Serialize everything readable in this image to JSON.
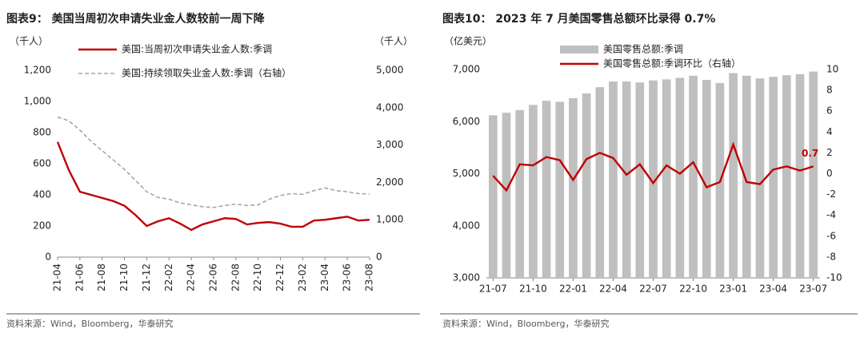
{
  "chart_data": [
    {
      "type": "line",
      "title": "图表9： 美国当周初次申请失业金人数较前一周下降",
      "y_label": "（千人）",
      "y2_label": "（千人）",
      "source": "资料来源：Wind，Bloomberg，华泰研究",
      "categories": [
        "21-04",
        null,
        "21-06",
        null,
        "21-08",
        null,
        "21-10",
        null,
        "21-12",
        null,
        "22-02",
        null,
        "22-04",
        null,
        "22-06",
        null,
        "22-08",
        null,
        "22-10",
        null,
        "22-12",
        null,
        "23-02",
        null,
        "23-04",
        null,
        "23-06",
        null,
        "23-08"
      ],
      "series": [
        {
          "name": "美国:当周初次申请失业金人数:季调",
          "color": "#c00000",
          "dashed": false,
          "values": [
            740,
            560,
            420,
            400,
            380,
            360,
            330,
            270,
            200,
            230,
            250,
            215,
            175,
            210,
            230,
            250,
            245,
            210,
            220,
            225,
            215,
            195,
            195,
            235,
            240,
            250,
            260,
            235,
            240
          ]
        },
        {
          "name": "美国:持续领取失业金人数:季调（右轴）",
          "color": "#a6a6a6",
          "dashed": true,
          "axis": "y2",
          "values": [
            3750,
            3650,
            3400,
            3100,
            2850,
            2600,
            2350,
            2050,
            1750,
            1600,
            1550,
            1450,
            1400,
            1350,
            1330,
            1380,
            1420,
            1380,
            1400,
            1550,
            1650,
            1700,
            1680,
            1780,
            1850,
            1780,
            1750,
            1700,
            1690
          ]
        }
      ],
      "ylim": [
        0,
        1200
      ],
      "yticks": [
        0,
        200,
        400,
        600,
        800,
        {
          "value": 1000,
          "label": "1,000"
        },
        {
          "value": 1200,
          "label": "1,200"
        }
      ],
      "y2lim": [
        0,
        5000
      ],
      "y2ticks": [
        0,
        {
          "value": 1000,
          "label": "1,000"
        },
        {
          "value": 2000,
          "label": "2,000"
        },
        {
          "value": 3000,
          "label": "3,000"
        },
        {
          "value": 4000,
          "label": "4,000"
        },
        {
          "value": 5000,
          "label": "5,000"
        }
      ]
    },
    {
      "type": "bar",
      "title": "图表10： 2023 年 7 月美国零售总额环比录得 0.7%",
      "y_label": "（亿美元）",
      "source": "资料来源：Wind，Bloomberg，华泰研究",
      "categories": [
        "21-07",
        null,
        null,
        "21-10",
        null,
        null,
        "22-01",
        null,
        null,
        "22-04",
        null,
        null,
        "22-07",
        null,
        null,
        "22-10",
        null,
        null,
        "23-01",
        null,
        null,
        "23-04",
        null,
        null,
        "23-07"
      ],
      "series": [
        {
          "name": "美国零售总额:季调",
          "color": "#bfbfbf",
          "kind": "bar",
          "values": [
            6120,
            6170,
            6220,
            6320,
            6400,
            6380,
            6450,
            6540,
            6660,
            6770,
            6770,
            6750,
            6790,
            6810,
            6840,
            6880,
            6800,
            6740,
            6930,
            6880,
            6830,
            6860,
            6890,
            6910,
            6960
          ]
        },
        {
          "name": "美国零售总额:季调环比（右轴）",
          "color": "#c00000",
          "kind": "line",
          "axis": "y2",
          "values": [
            -0.2,
            -1.6,
            0.9,
            0.8,
            1.6,
            1.3,
            -0.6,
            1.4,
            2.0,
            1.5,
            -0.1,
            0.9,
            -0.9,
            0.8,
            0.0,
            1.1,
            -1.3,
            -0.8,
            2.8,
            -0.8,
            -1.0,
            0.4,
            0.7,
            0.3,
            0.7
          ]
        }
      ],
      "ylim": [
        3000,
        7000
      ],
      "yticks": [
        {
          "value": 3000,
          "label": "3,000"
        },
        {
          "value": 4000,
          "label": "4,000"
        },
        {
          "value": 5000,
          "label": "5,000"
        },
        {
          "value": 6000,
          "label": "6,000"
        },
        {
          "value": 7000,
          "label": "7,000"
        }
      ],
      "y2lim": [
        -10,
        10
      ],
      "y2ticks": [
        -10,
        -8,
        -6,
        -4,
        -2,
        0,
        2,
        4,
        6,
        8,
        10
      ]
    }
  ]
}
